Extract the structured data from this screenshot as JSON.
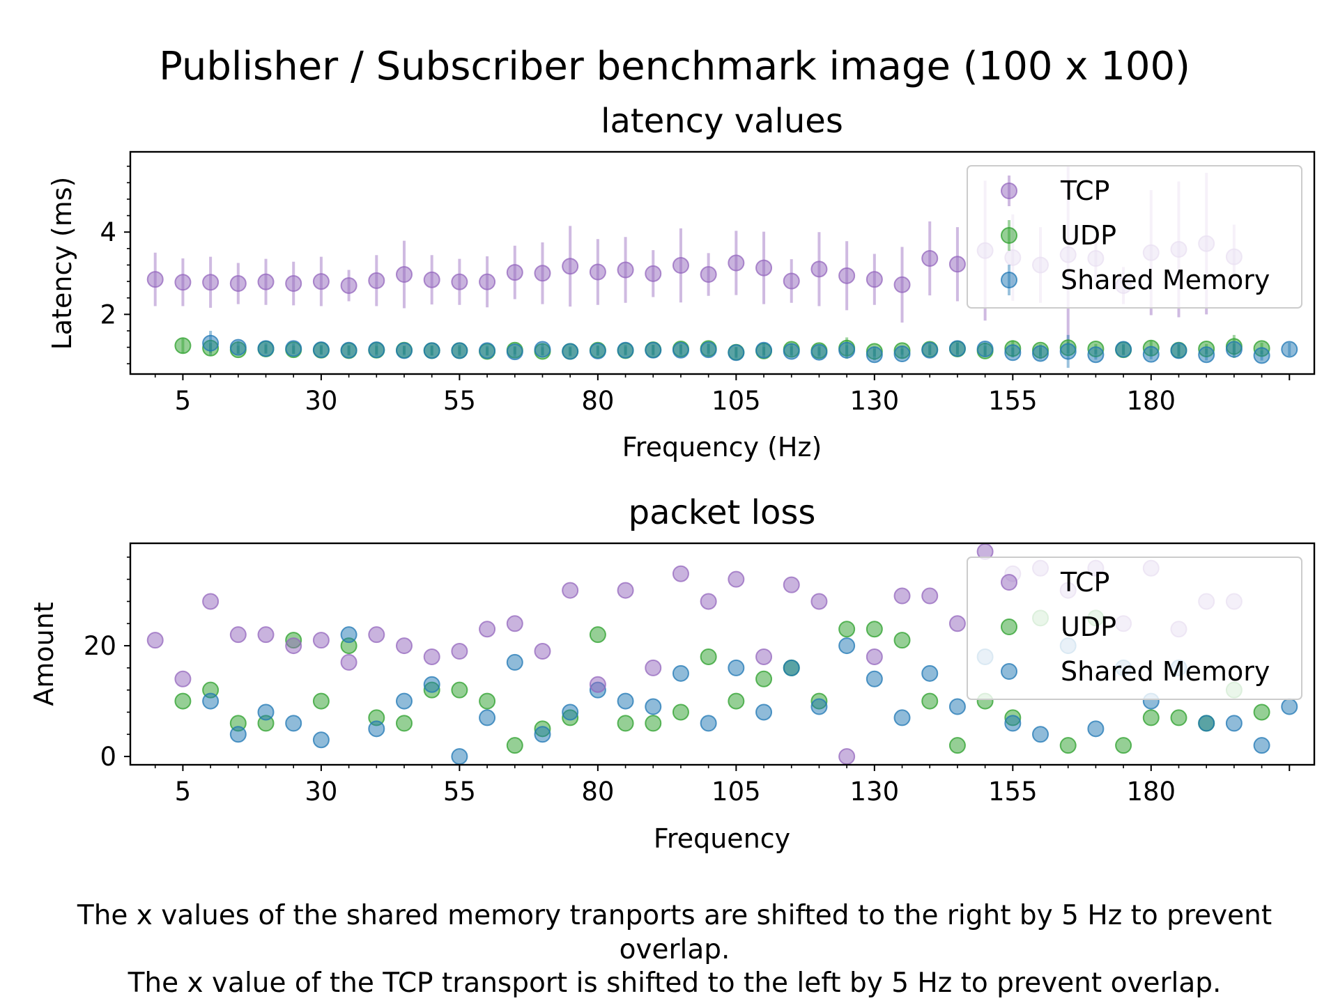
{
  "figure": {
    "suptitle": "Publisher / Subscriber benchmark image (100 x 100)",
    "footnote_line1": "The x values of the shared memory tranports are shifted to the right by 5 Hz to prevent",
    "footnote_line2": "overlap.",
    "footnote_line3": "The x value of the TCP transport is shifted to the left by 5 Hz to prevent overlap."
  },
  "colors": {
    "tcp": "#9467bd",
    "udp": "#2ca02c",
    "shm": "#1f77b4"
  },
  "chart_data": [
    {
      "type": "scatter",
      "title": "latency values",
      "xlabel": "Frequency (Hz)",
      "ylabel": "Latency (ms)",
      "xlim": [
        -4.5,
        209.5
      ],
      "ylim": [
        0.55,
        5.95
      ],
      "xticks": [
        5,
        30,
        55,
        80,
        105,
        130,
        155,
        180
      ],
      "yticks": [
        2,
        4
      ],
      "grid": false,
      "error_bars": true,
      "legend": {
        "placement": "upper right",
        "entries": [
          "TCP",
          "UDP",
          "Shared Memory"
        ]
      },
      "series": [
        {
          "name": "TCP",
          "x": [
            5,
            10,
            15,
            20,
            25,
            30,
            35,
            40,
            45,
            50,
            55,
            60,
            65,
            70,
            75,
            80,
            85,
            90,
            95,
            100,
            105,
            110,
            115,
            120,
            125,
            130,
            135,
            140,
            145,
            150,
            155,
            160,
            165,
            170,
            175,
            180,
            185,
            190,
            195,
            200
          ],
          "y": [
            2.85,
            2.78,
            2.78,
            2.75,
            2.79,
            2.75,
            2.8,
            2.7,
            2.82,
            2.97,
            2.84,
            2.79,
            2.79,
            3.02,
            3.0,
            3.17,
            3.03,
            3.08,
            2.99,
            3.19,
            2.97,
            3.25,
            3.13,
            2.81,
            3.1,
            2.94,
            2.85,
            2.72,
            3.36,
            3.22,
            3.55,
            3.38,
            3.2,
            3.45,
            3.36,
            2.7,
            3.5,
            3.58,
            3.72,
            3.4
          ],
          "yerr": [
            0.65,
            0.58,
            0.62,
            0.5,
            0.56,
            0.53,
            0.6,
            0.38,
            0.62,
            0.82,
            0.6,
            0.56,
            0.62,
            0.65,
            0.75,
            0.98,
            0.8,
            0.8,
            0.57,
            0.9,
            0.52,
            0.78,
            0.88,
            0.53,
            0.9,
            0.84,
            0.62,
            0.92,
            0.9,
            0.9,
            1.7,
            1.05,
            0.92,
            2.15,
            0.55,
            0.45,
            1.52,
            1.65,
            1.72,
            0.78
          ]
        },
        {
          "name": "UDP",
          "x": [
            5,
            10,
            15,
            20,
            25,
            30,
            35,
            40,
            45,
            50,
            55,
            60,
            65,
            70,
            75,
            80,
            85,
            90,
            95,
            100,
            105,
            110,
            115,
            120,
            125,
            130,
            135,
            140,
            145,
            150,
            155,
            160,
            165,
            170,
            175,
            180,
            185,
            190,
            195,
            200
          ],
          "y": [
            1.24,
            1.18,
            1.14,
            1.16,
            1.14,
            1.13,
            1.12,
            1.13,
            1.13,
            1.12,
            1.12,
            1.1,
            1.13,
            1.1,
            1.1,
            1.13,
            1.12,
            1.14,
            1.16,
            1.17,
            1.08,
            1.11,
            1.15,
            1.12,
            1.18,
            1.1,
            1.12,
            1.15,
            1.16,
            1.11,
            1.17,
            1.13,
            1.19,
            1.16,
            1.14,
            1.18,
            1.13,
            1.16,
            1.22,
            1.17
          ],
          "yerr": [
            0.18,
            0.12,
            0.1,
            0.1,
            0.1,
            0.1,
            0.12,
            0.1,
            0.1,
            0.12,
            0.1,
            0.1,
            0.1,
            0.1,
            0.1,
            0.12,
            0.1,
            0.12,
            0.12,
            0.12,
            0.12,
            0.1,
            0.14,
            0.12,
            0.26,
            0.12,
            0.1,
            0.14,
            0.16,
            0.12,
            0.2,
            0.14,
            0.14,
            0.12,
            0.12,
            0.18,
            0.14,
            0.12,
            0.28,
            0.14
          ]
        },
        {
          "name": "Shared Memory",
          "x": [
            5,
            10,
            15,
            20,
            25,
            30,
            35,
            40,
            45,
            50,
            55,
            60,
            65,
            70,
            75,
            80,
            85,
            90,
            95,
            100,
            105,
            110,
            115,
            120,
            125,
            130,
            135,
            140,
            145,
            150,
            155,
            160,
            165,
            170,
            175,
            180,
            185,
            190,
            195,
            200
          ],
          "y": [
            1.3,
            1.2,
            1.17,
            1.17,
            1.14,
            1.13,
            1.14,
            1.12,
            1.12,
            1.12,
            1.12,
            1.09,
            1.15,
            1.1,
            1.11,
            1.13,
            1.13,
            1.13,
            1.14,
            1.07,
            1.13,
            1.1,
            1.08,
            1.13,
            1.02,
            1.04,
            1.13,
            1.17,
            1.16,
            1.07,
            1.05,
            1.1,
            1.02,
            1.15,
            1.03,
            1.12,
            1.02,
            1.15,
            1.0,
            1.15
          ],
          "yerr": [
            0.3,
            0.15,
            0.13,
            0.13,
            0.12,
            0.12,
            0.15,
            0.12,
            0.12,
            0.14,
            0.12,
            0.12,
            0.14,
            0.12,
            0.12,
            0.13,
            0.13,
            0.13,
            0.14,
            0.14,
            0.18,
            0.12,
            0.12,
            0.12,
            0.14,
            0.12,
            0.12,
            0.14,
            0.16,
            0.12,
            0.14,
            0.4,
            0.12,
            0.14,
            0.12,
            0.16,
            0.14,
            0.14,
            0.12,
            0.16
          ]
        }
      ]
    },
    {
      "type": "scatter",
      "title": "packet loss",
      "xlabel": "Frequency",
      "ylabel": "Amount",
      "xlim": [
        -4.5,
        209.5
      ],
      "ylim": [
        -1.5,
        38.5
      ],
      "xticks": [
        5,
        30,
        55,
        80,
        105,
        130,
        155,
        180
      ],
      "yticks": [
        0,
        20
      ],
      "grid": false,
      "legend": {
        "placement": "upper right",
        "entries": [
          "TCP",
          "UDP",
          "Shared Memory"
        ]
      },
      "series": [
        {
          "name": "TCP",
          "x": [
            5,
            10,
            15,
            20,
            25,
            30,
            35,
            40,
            45,
            50,
            55,
            60,
            65,
            70,
            75,
            80,
            85,
            90,
            95,
            100,
            105,
            110,
            115,
            120,
            125,
            130,
            135,
            140,
            145,
            150,
            155,
            160,
            165,
            170,
            175,
            180,
            185,
            190,
            195,
            200
          ],
          "y": [
            21,
            14,
            28,
            22,
            22,
            20,
            21,
            17,
            22,
            20,
            18,
            19,
            23,
            24,
            19,
            30,
            13,
            30,
            16,
            33,
            28,
            32,
            18,
            31,
            28,
            0,
            18,
            29,
            29,
            24,
            37,
            33,
            34,
            30,
            34,
            24,
            34,
            23,
            28,
            28
          ]
        },
        {
          "name": "UDP",
          "x": [
            5,
            10,
            15,
            20,
            25,
            30,
            35,
            40,
            45,
            50,
            55,
            60,
            65,
            70,
            75,
            80,
            85,
            90,
            95,
            100,
            105,
            110,
            115,
            120,
            125,
            130,
            135,
            140,
            145,
            150,
            155,
            160,
            165,
            170,
            175,
            180,
            185,
            190,
            195,
            200
          ],
          "y": [
            10,
            12,
            6,
            6,
            21,
            10,
            20,
            7,
            6,
            12,
            12,
            10,
            2,
            5,
            7,
            22,
            6,
            6,
            8,
            18,
            10,
            14,
            16,
            10,
            23,
            23,
            21,
            10,
            2,
            10,
            7,
            25,
            2,
            25,
            2,
            7,
            7,
            6,
            12,
            8
          ]
        },
        {
          "name": "Shared Memory",
          "x": [
            5,
            10,
            15,
            20,
            25,
            30,
            35,
            40,
            45,
            50,
            55,
            60,
            65,
            70,
            75,
            80,
            85,
            90,
            95,
            100,
            105,
            110,
            115,
            120,
            125,
            130,
            135,
            140,
            145,
            150,
            155,
            160,
            165,
            170,
            175,
            180,
            185,
            190,
            195,
            200
          ],
          "y": [
            10,
            4,
            8,
            6,
            3,
            22,
            5,
            10,
            13,
            0,
            7,
            17,
            4,
            8,
            12,
            10,
            9,
            15,
            6,
            16,
            8,
            16,
            9,
            20,
            14,
            7,
            15,
            9,
            18,
            6,
            4,
            20,
            5,
            16,
            10,
            16,
            6,
            6,
            2,
            9
          ]
        }
      ]
    }
  ]
}
